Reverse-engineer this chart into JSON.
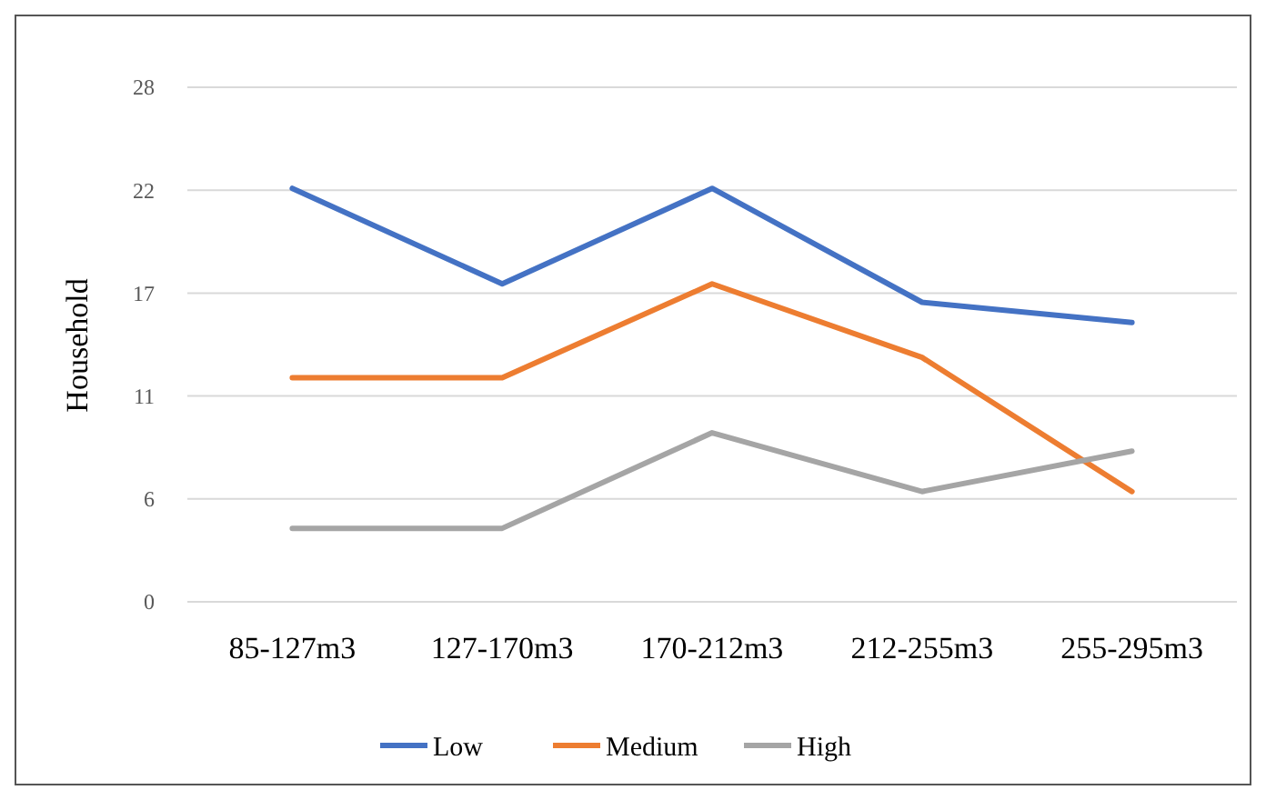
{
  "chart_data": {
    "type": "line",
    "ylabel": "Household",
    "categories": [
      "85-127m3",
      "127-170m3",
      "170-212m3",
      "212-255m3",
      "255-295m3"
    ],
    "series": [
      {
        "name": "Low",
        "color": "#4472c4",
        "values": [
          22.5,
          17.3,
          22.5,
          16.3,
          15.2
        ]
      },
      {
        "name": "Medium",
        "color": "#ed7d31",
        "values": [
          12.2,
          12.2,
          17.3,
          13.3,
          6.0
        ]
      },
      {
        "name": "High",
        "color": "#a5a5a5",
        "values": [
          4.0,
          4.0,
          9.2,
          6.0,
          8.2
        ]
      }
    ],
    "ylim": [
      0,
      28
    ],
    "yticks": [
      {
        "value": 0,
        "label": "0"
      },
      {
        "value": 5.6,
        "label": "6"
      },
      {
        "value": 11.2,
        "label": "11"
      },
      {
        "value": 16.8,
        "label": "17"
      },
      {
        "value": 22.4,
        "label": "22"
      },
      {
        "value": 28,
        "label": "28"
      }
    ],
    "grid": "y",
    "legend": "bottom",
    "marker": "none",
    "line_style": "solid"
  }
}
